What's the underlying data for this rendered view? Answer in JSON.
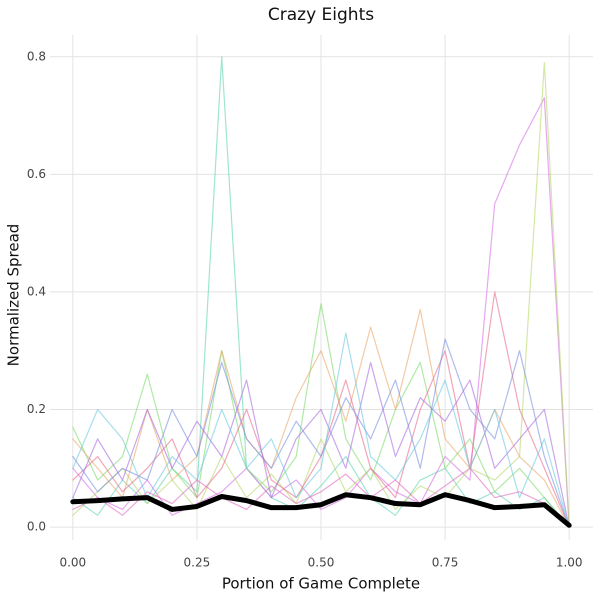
{
  "chart_data": {
    "type": "line",
    "title": "Crazy Eights",
    "xlabel": "Portion of Game Complete",
    "ylabel": "Normalized Spread",
    "x": [
      0,
      0.05,
      0.1,
      0.15,
      0.2,
      0.25,
      0.3,
      0.35,
      0.4,
      0.45,
      0.5,
      0.55,
      0.6,
      0.65,
      0.7,
      0.75,
      0.8,
      0.85,
      0.9,
      0.95,
      1
    ],
    "series": [
      {
        "color": "#5fd3b3",
        "values": [
          0.05,
          0.02,
          0.08,
          0.04,
          0.1,
          0.06,
          0.8,
          0.1,
          0.05,
          0.03,
          0.07,
          0.12,
          0.05,
          0.02,
          0.08,
          0.1,
          0.04,
          0.06,
          0.03,
          0.05,
          0
        ]
      },
      {
        "color": "#d56ee6",
        "values": [
          0.1,
          0.05,
          0.03,
          0.08,
          0.02,
          0.04,
          0.06,
          0.1,
          0.05,
          0.08,
          0.03,
          0.05,
          0.1,
          0.06,
          0.04,
          0.12,
          0.08,
          0.55,
          0.65,
          0.73,
          0
        ]
      },
      {
        "color": "#b5d96b",
        "values": [
          0.02,
          0.06,
          0.1,
          0.04,
          0.08,
          0.03,
          0.12,
          0.05,
          0.09,
          0.04,
          0.15,
          0.06,
          0.1,
          0.03,
          0.07,
          0.05,
          0.1,
          0.08,
          0.12,
          0.79,
          0
        ]
      },
      {
        "color": "#7ddb6b",
        "values": [
          0.17,
          0.08,
          0.12,
          0.26,
          0.1,
          0.05,
          0.3,
          0.1,
          0.06,
          0.12,
          0.38,
          0.15,
          0.08,
          0.2,
          0.28,
          0.1,
          0.15,
          0.06,
          0.1,
          0.05,
          0
        ]
      },
      {
        "color": "#e8a96a",
        "values": [
          0.15,
          0.1,
          0.05,
          0.2,
          0.08,
          0.12,
          0.3,
          0.15,
          0.1,
          0.22,
          0.3,
          0.18,
          0.34,
          0.2,
          0.37,
          0.15,
          0.1,
          0.2,
          0.12,
          0.08,
          0
        ]
      },
      {
        "color": "#e86a8a",
        "values": [
          0.08,
          0.12,
          0.06,
          0.1,
          0.15,
          0.05,
          0.1,
          0.2,
          0.08,
          0.05,
          0.12,
          0.25,
          0.1,
          0.05,
          0.2,
          0.3,
          0.1,
          0.4,
          0.2,
          0.1,
          0
        ]
      },
      {
        "color": "#7a8fe0",
        "values": [
          0.12,
          0.06,
          0.1,
          0.08,
          0.2,
          0.12,
          0.28,
          0.15,
          0.1,
          0.18,
          0.12,
          0.22,
          0.15,
          0.25,
          0.1,
          0.32,
          0.2,
          0.15,
          0.3,
          0.12,
          0
        ]
      },
      {
        "color": "#a96ae0",
        "values": [
          0.05,
          0.15,
          0.08,
          0.2,
          0.1,
          0.18,
          0.12,
          0.25,
          0.05,
          0.15,
          0.2,
          0.1,
          0.28,
          0.12,
          0.22,
          0.18,
          0.25,
          0.1,
          0.15,
          0.2,
          0
        ]
      },
      {
        "color": "#6ac8e0",
        "values": [
          0.1,
          0.2,
          0.15,
          0.05,
          0.12,
          0.08,
          0.2,
          0.1,
          0.15,
          0.05,
          0.1,
          0.33,
          0.12,
          0.08,
          0.15,
          0.25,
          0.1,
          0.2,
          0.05,
          0.15,
          0
        ]
      },
      {
        "color": "#e06ac0",
        "values": [
          0.03,
          0.05,
          0.02,
          0.06,
          0.04,
          0.08,
          0.05,
          0.03,
          0.07,
          0.04,
          0.06,
          0.09,
          0.05,
          0.08,
          0.04,
          0.07,
          0.1,
          0.05,
          0.06,
          0.04,
          0
        ]
      }
    ],
    "trend": {
      "color": "#000000",
      "values": [
        0.043,
        0.045,
        0.048,
        0.05,
        0.03,
        0.035,
        0.052,
        0.045,
        0.033,
        0.033,
        0.038,
        0.055,
        0.05,
        0.04,
        0.038,
        0.055,
        0.045,
        0.033,
        0.035,
        0.038,
        0.003
      ]
    },
    "xlim": [
      -0.046,
      1.048
    ],
    "ylim": [
      -0.022,
      0.837
    ],
    "xticks": [
      {
        "value": 0,
        "label": "0.00"
      },
      {
        "value": 0.25,
        "label": "0.25"
      },
      {
        "value": 0.5,
        "label": "0.50"
      },
      {
        "value": 0.75,
        "label": "0.75"
      },
      {
        "value": 1,
        "label": "1.00"
      }
    ],
    "yticks": [
      {
        "value": 0,
        "label": "0.0"
      },
      0.2,
      0.4,
      0.6,
      0.8
    ],
    "grid": true
  }
}
